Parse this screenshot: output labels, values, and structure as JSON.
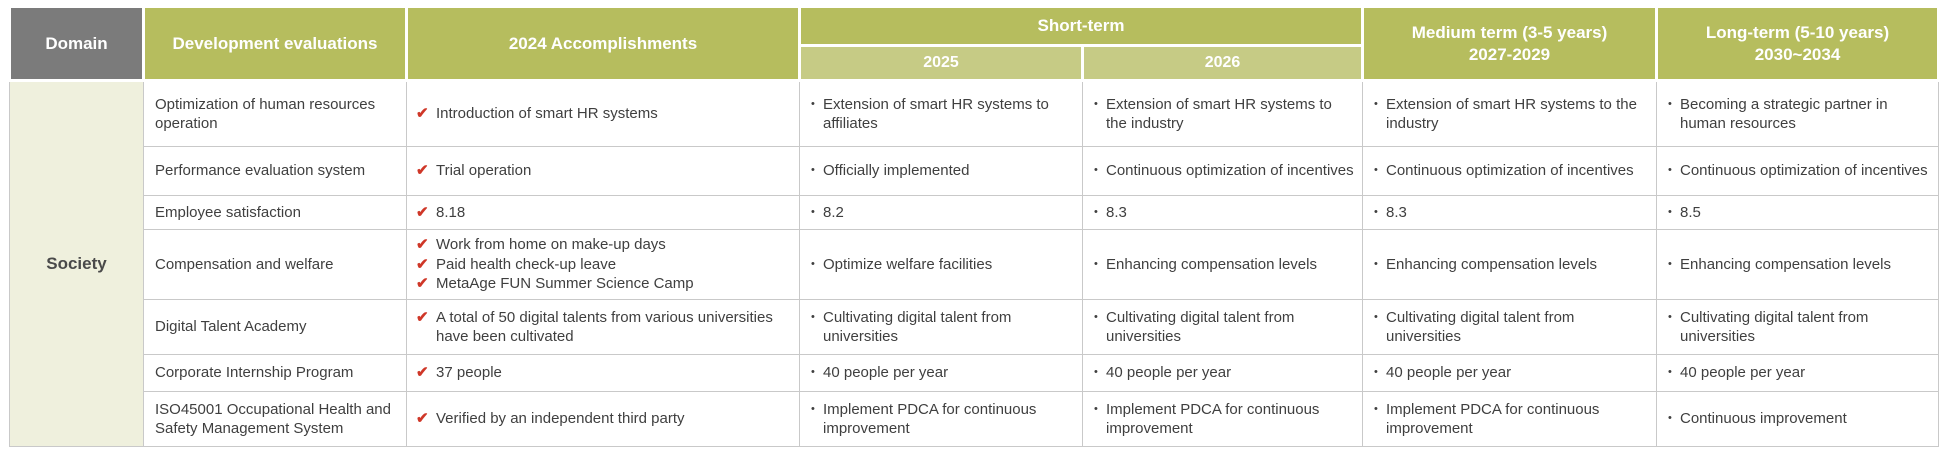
{
  "table": {
    "header": {
      "domain": "Domain",
      "development_evaluations": "Development evaluations",
      "accomplishments_2024": "2024 Accomplishments",
      "short_term": "Short-term",
      "year_2025": "2025",
      "year_2026": "2026",
      "medium_term_line1": "Medium term (3-5 years)",
      "medium_term_line2": "2027-2029",
      "long_term_line1": "Long-term (5-10 years)",
      "long_term_line2": "2030~2034"
    },
    "domain_value": "Society",
    "icons": {
      "check": "✔",
      "bullet": "•"
    },
    "colors": {
      "header_olive": "#b6bd5e",
      "subheader_olive": "#c6cb85",
      "domain_gray": "#7b7b7b",
      "society_bg": "#eff0dd",
      "check_red": "#cf3728",
      "border_gray": "#c9c9c9",
      "body_text": "#3f3f3f",
      "header_text": "#ffffff"
    },
    "rows": [
      {
        "evaluation": "Optimization of human resources operation",
        "accomplishments": [
          "Introduction of smart HR systems"
        ],
        "y2025": [
          "Extension of smart HR systems to affiliates"
        ],
        "y2026": [
          "Extension of smart HR systems to the industry"
        ],
        "medium": [
          "Extension of smart HR systems to the industry"
        ],
        "long": [
          "Becoming a strategic partner in human resources"
        ]
      },
      {
        "evaluation": "Performance evaluation system",
        "accomplishments": [
          "Trial operation"
        ],
        "y2025": [
          "Officially implemented"
        ],
        "y2026": [
          "Continuous optimization of incentives"
        ],
        "medium": [
          "Continuous optimization of incentives"
        ],
        "long": [
          "Continuous optimization of incentives"
        ]
      },
      {
        "evaluation": "Employee satisfaction",
        "accomplishments": [
          "8.18"
        ],
        "y2025": [
          "8.2"
        ],
        "y2026": [
          "8.3"
        ],
        "medium": [
          "8.3"
        ],
        "long": [
          "8.5"
        ]
      },
      {
        "evaluation": "Compensation and welfare",
        "accomplishments": [
          "Work from home on make-up days",
          "Paid health check-up leave",
          "MetaAge FUN Summer Science Camp"
        ],
        "y2025": [
          "Optimize welfare facilities"
        ],
        "y2026": [
          "Enhancing compensation levels"
        ],
        "medium": [
          "Enhancing compensation levels"
        ],
        "long": [
          "Enhancing compensation levels"
        ]
      },
      {
        "evaluation": "Digital Talent Academy",
        "accomplishments": [
          "A total of 50 digital talents from various universities have been cultivated"
        ],
        "y2025": [
          "Cultivating digital talent from universities"
        ],
        "y2026": [
          "Cultivating digital talent from universities"
        ],
        "medium": [
          "Cultivating digital talent from universities"
        ],
        "long": [
          "Cultivating digital talent from universities"
        ]
      },
      {
        "evaluation": "Corporate Internship Program",
        "accomplishments": [
          "37 people"
        ],
        "y2025": [
          "40 people per year"
        ],
        "y2026": [
          "40 people per year"
        ],
        "medium": [
          "40 people per year"
        ],
        "long": [
          "40 people per year"
        ]
      },
      {
        "evaluation": "ISO45001 Occupational Health and Safety Management System",
        "accomplishments": [
          "Verified by an independent third party"
        ],
        "y2025": [
          "Implement PDCA for continuous improvement"
        ],
        "y2026": [
          "Implement PDCA for continuous improvement"
        ],
        "medium": [
          "Implement PDCA for continuous improvement"
        ],
        "long": [
          "Continuous improvement"
        ]
      }
    ]
  }
}
